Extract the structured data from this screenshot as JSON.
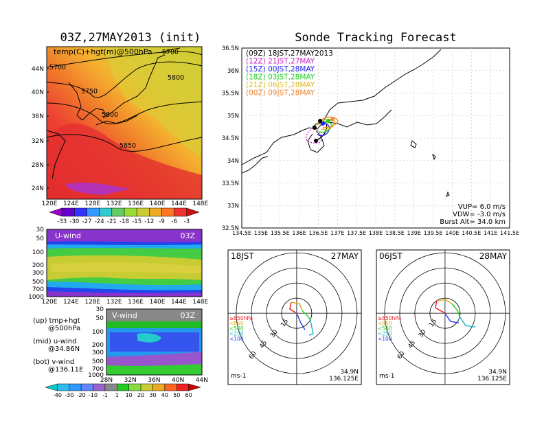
{
  "map_panel": {
    "title": "03Z,27MAY2013 (init)",
    "label": "temp(C)+hgt(m)@500hPa",
    "lat_ticks": [
      "44N",
      "40N",
      "36N",
      "32N",
      "28N",
      "24N"
    ],
    "lon_ticks": [
      "120E",
      "124E",
      "128E",
      "132E",
      "136E",
      "140E",
      "144E",
      "148E"
    ],
    "contour_labels": [
      "5700",
      "5700",
      "5750",
      "5800",
      "5800",
      "5850"
    ],
    "colorbar_values": [
      "-33",
      "-30",
      "-27",
      "-24",
      "-21",
      "-18",
      "-15",
      "-12",
      "-9",
      "-6",
      "-3"
    ],
    "colorbar_colors": [
      "#9900cc",
      "#6600cc",
      "#3333ff",
      "#3399ff",
      "#33cccc",
      "#66cc66",
      "#99dd33",
      "#cccc33",
      "#eeaa22",
      "#ff7722",
      "#ee3333",
      "#cc1111"
    ]
  },
  "uwind_panel": {
    "label": "U-wind",
    "time": "03Z",
    "pressure_ticks": [
      "30",
      "50",
      "100",
      "200",
      "300",
      "500",
      "700",
      "1000"
    ],
    "lon_ticks": [
      "120E",
      "124E",
      "128E",
      "132E",
      "136E",
      "140E",
      "144E",
      "148E"
    ]
  },
  "vwind_panel": {
    "label": "V-wind",
    "time": "03Z",
    "pressure_ticks": [
      "30",
      "50",
      "100",
      "200",
      "300",
      "500",
      "700",
      "1000"
    ],
    "lat_ticks": [
      "28N",
      "32N",
      "36N",
      "40N",
      "44N"
    ],
    "colorbar_values": [
      "-40",
      "-30",
      "-20",
      "-10",
      "-1",
      "1",
      "10",
      "20",
      "30",
      "40",
      "50",
      "60"
    ],
    "colorbar_colors": [
      "#00cccc",
      "#33bbee",
      "#3399ff",
      "#6688ff",
      "#9966cc",
      "#888888",
      "#22cc22",
      "#88dd44",
      "#cccc33",
      "#eeaa22",
      "#ff6622",
      "#ee2222",
      "#cc0000"
    ]
  },
  "legend_notes": {
    "up": "(up) tmp+hgt",
    "up2": "@500hPa",
    "mid": "(mid) u-wind",
    "mid2": "@34.86N",
    "bot": "(bot) v-wind",
    "bot2": "@136.11E"
  },
  "tracking": {
    "title": "Sonde Tracking Forecast",
    "lat_ticks": [
      "36.5N",
      "36N",
      "35.5N",
      "35N",
      "34.5N",
      "34N",
      "33.5N",
      "33N",
      "32.5N"
    ],
    "lon_ticks": [
      "134.5E",
      "135E",
      "135.5E",
      "136E",
      "136.5E",
      "137E",
      "137.5E",
      "138E",
      "138.5E",
      "139E",
      "139.5E",
      "140E",
      "140.5E",
      "141E",
      "141.5E"
    ],
    "launches": [
      {
        "label": "(09Z)  18JST,27MAY2013",
        "color": "#000000"
      },
      {
        "label": "(12Z)  21JST,27MAY",
        "color": "#cc22cc"
      },
      {
        "label": "(15Z)  00JST,28MAY",
        "color": "#2222ee"
      },
      {
        "label": "(18Z)  03JST,28MAY",
        "color": "#22cc22"
      },
      {
        "label": "(21Z)  06JST,28MAY",
        "color": "#ddbb22"
      },
      {
        "label": "(00Z)  09JST,28MAY",
        "color": "#ee8833"
      }
    ],
    "params": {
      "vup": "VUP=  6.0  m/s",
      "vdw": "VDW= -3.0  m/s",
      "burst": "Burst Alt= 34.0  km"
    }
  },
  "hodographs": [
    {
      "time": "18JST",
      "date": "27MAY",
      "lat": "34.9N",
      "lon": "136.125E",
      "unit": "ms-1",
      "rings": [
        "15",
        "30",
        "45",
        "60"
      ],
      "levels": [
        "≥850hPa",
        "<850",
        "<500",
        "<250",
        "<100"
      ]
    },
    {
      "time": "06JST",
      "date": "28MAY",
      "lat": "34.9N",
      "lon": "136.125E",
      "unit": "ms-1",
      "rings": [
        "15",
        "30",
        "45",
        "60"
      ],
      "levels": [
        "≥850hPa",
        "<850",
        "<500",
        "<250",
        "<100"
      ]
    }
  ],
  "level_colors": [
    "#ee2222",
    "#ddaa22",
    "#22cc22",
    "#22bbcc",
    "#2244ee"
  ]
}
